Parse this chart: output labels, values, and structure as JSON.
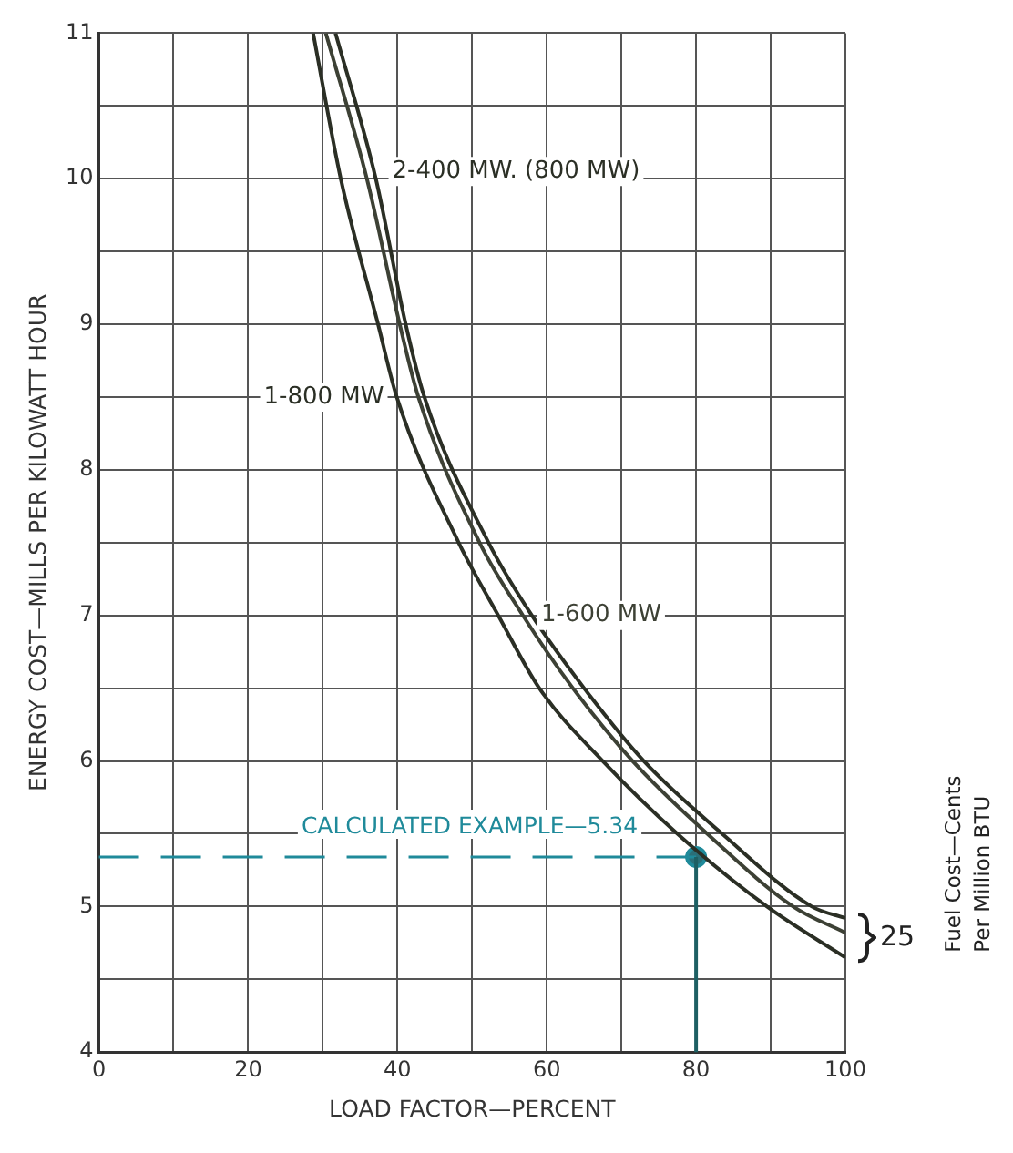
{
  "chart_data": {
    "type": "line",
    "xlabel": "LOAD FACTOR—PERCENT",
    "ylabel": "ENERGY COST—MILLS PER KILOWATT HOUR",
    "xlim": [
      0,
      100
    ],
    "xticks": [
      0,
      {
        "value": 10,
        "label": null
      },
      20,
      {
        "value": 30,
        "label": null
      },
      40,
      {
        "value": 50,
        "label": null
      },
      60,
      {
        "value": 70,
        "label": null
      },
      80,
      {
        "value": 90,
        "label": null
      },
      100
    ],
    "ylim": [
      4,
      11
    ],
    "yticks": [
      4,
      {
        "value": 4.5,
        "label": null
      },
      5,
      {
        "value": 5.5,
        "label": null
      },
      6,
      {
        "value": 6.5,
        "label": null
      },
      7,
      {
        "value": 7.5,
        "label": null
      },
      8,
      {
        "value": 8.5,
        "label": null
      },
      9,
      {
        "value": 9.5,
        "label": null
      },
      10,
      {
        "value": 10.5,
        "label": null
      },
      11
    ],
    "grid": true,
    "legend": false,
    "marker": "none",
    "line_style": "solid",
    "series": [
      {
        "name": "1-800 MW",
        "color": "#2b2f25",
        "x": [
          28.7,
          32.4,
          37.4,
          39.9,
          48.2,
          53.5,
          59,
          67.5,
          77.5,
          89.5,
          100
        ],
        "values": [
          11,
          10,
          9,
          8.5,
          7.5,
          7,
          6.5,
          6,
          5.5,
          5,
          4.65
        ]
      },
      {
        "name": "1-600 MW",
        "color": "#3d4135",
        "x": [
          30.4,
          35.9,
          40.3,
          42.8,
          51,
          56.8,
          63.5,
          71.5,
          81.5,
          93,
          100
        ],
        "values": [
          11,
          10,
          9,
          8.5,
          7.5,
          7,
          6.5,
          6,
          5.5,
          5,
          4.82
        ]
      },
      {
        "name": "2-400 MW. (800 MW)",
        "color": "#2b2f25",
        "x": [
          31.7,
          37.1,
          41.1,
          43.6,
          52.2,
          58,
          65,
          73,
          83.5,
          95.5,
          100
        ],
        "values": [
          11,
          10,
          9,
          8.5,
          7.5,
          7,
          6.5,
          6,
          5.5,
          5,
          4.92
        ]
      },
      {
        "type": "scatter",
        "color": "#1f8a9a",
        "marker": "circle",
        "x": [
          80
        ],
        "values": [
          5.34
        ]
      }
    ],
    "ref_lines": [
      {
        "axis": "y",
        "value": 5.34,
        "color": "#1f8a9a",
        "line_style": "dashed"
      },
      {
        "axis": "x",
        "value": 80,
        "color": "#1d5f63",
        "line_style": "solid"
      }
    ],
    "annotations": [
      {
        "text": "CALCULATED EXAMPLE—5.34",
        "x": 80,
        "y": 5.34
      },
      "25",
      "Fuel Cost—Cents",
      "Per Million BTU"
    ]
  }
}
